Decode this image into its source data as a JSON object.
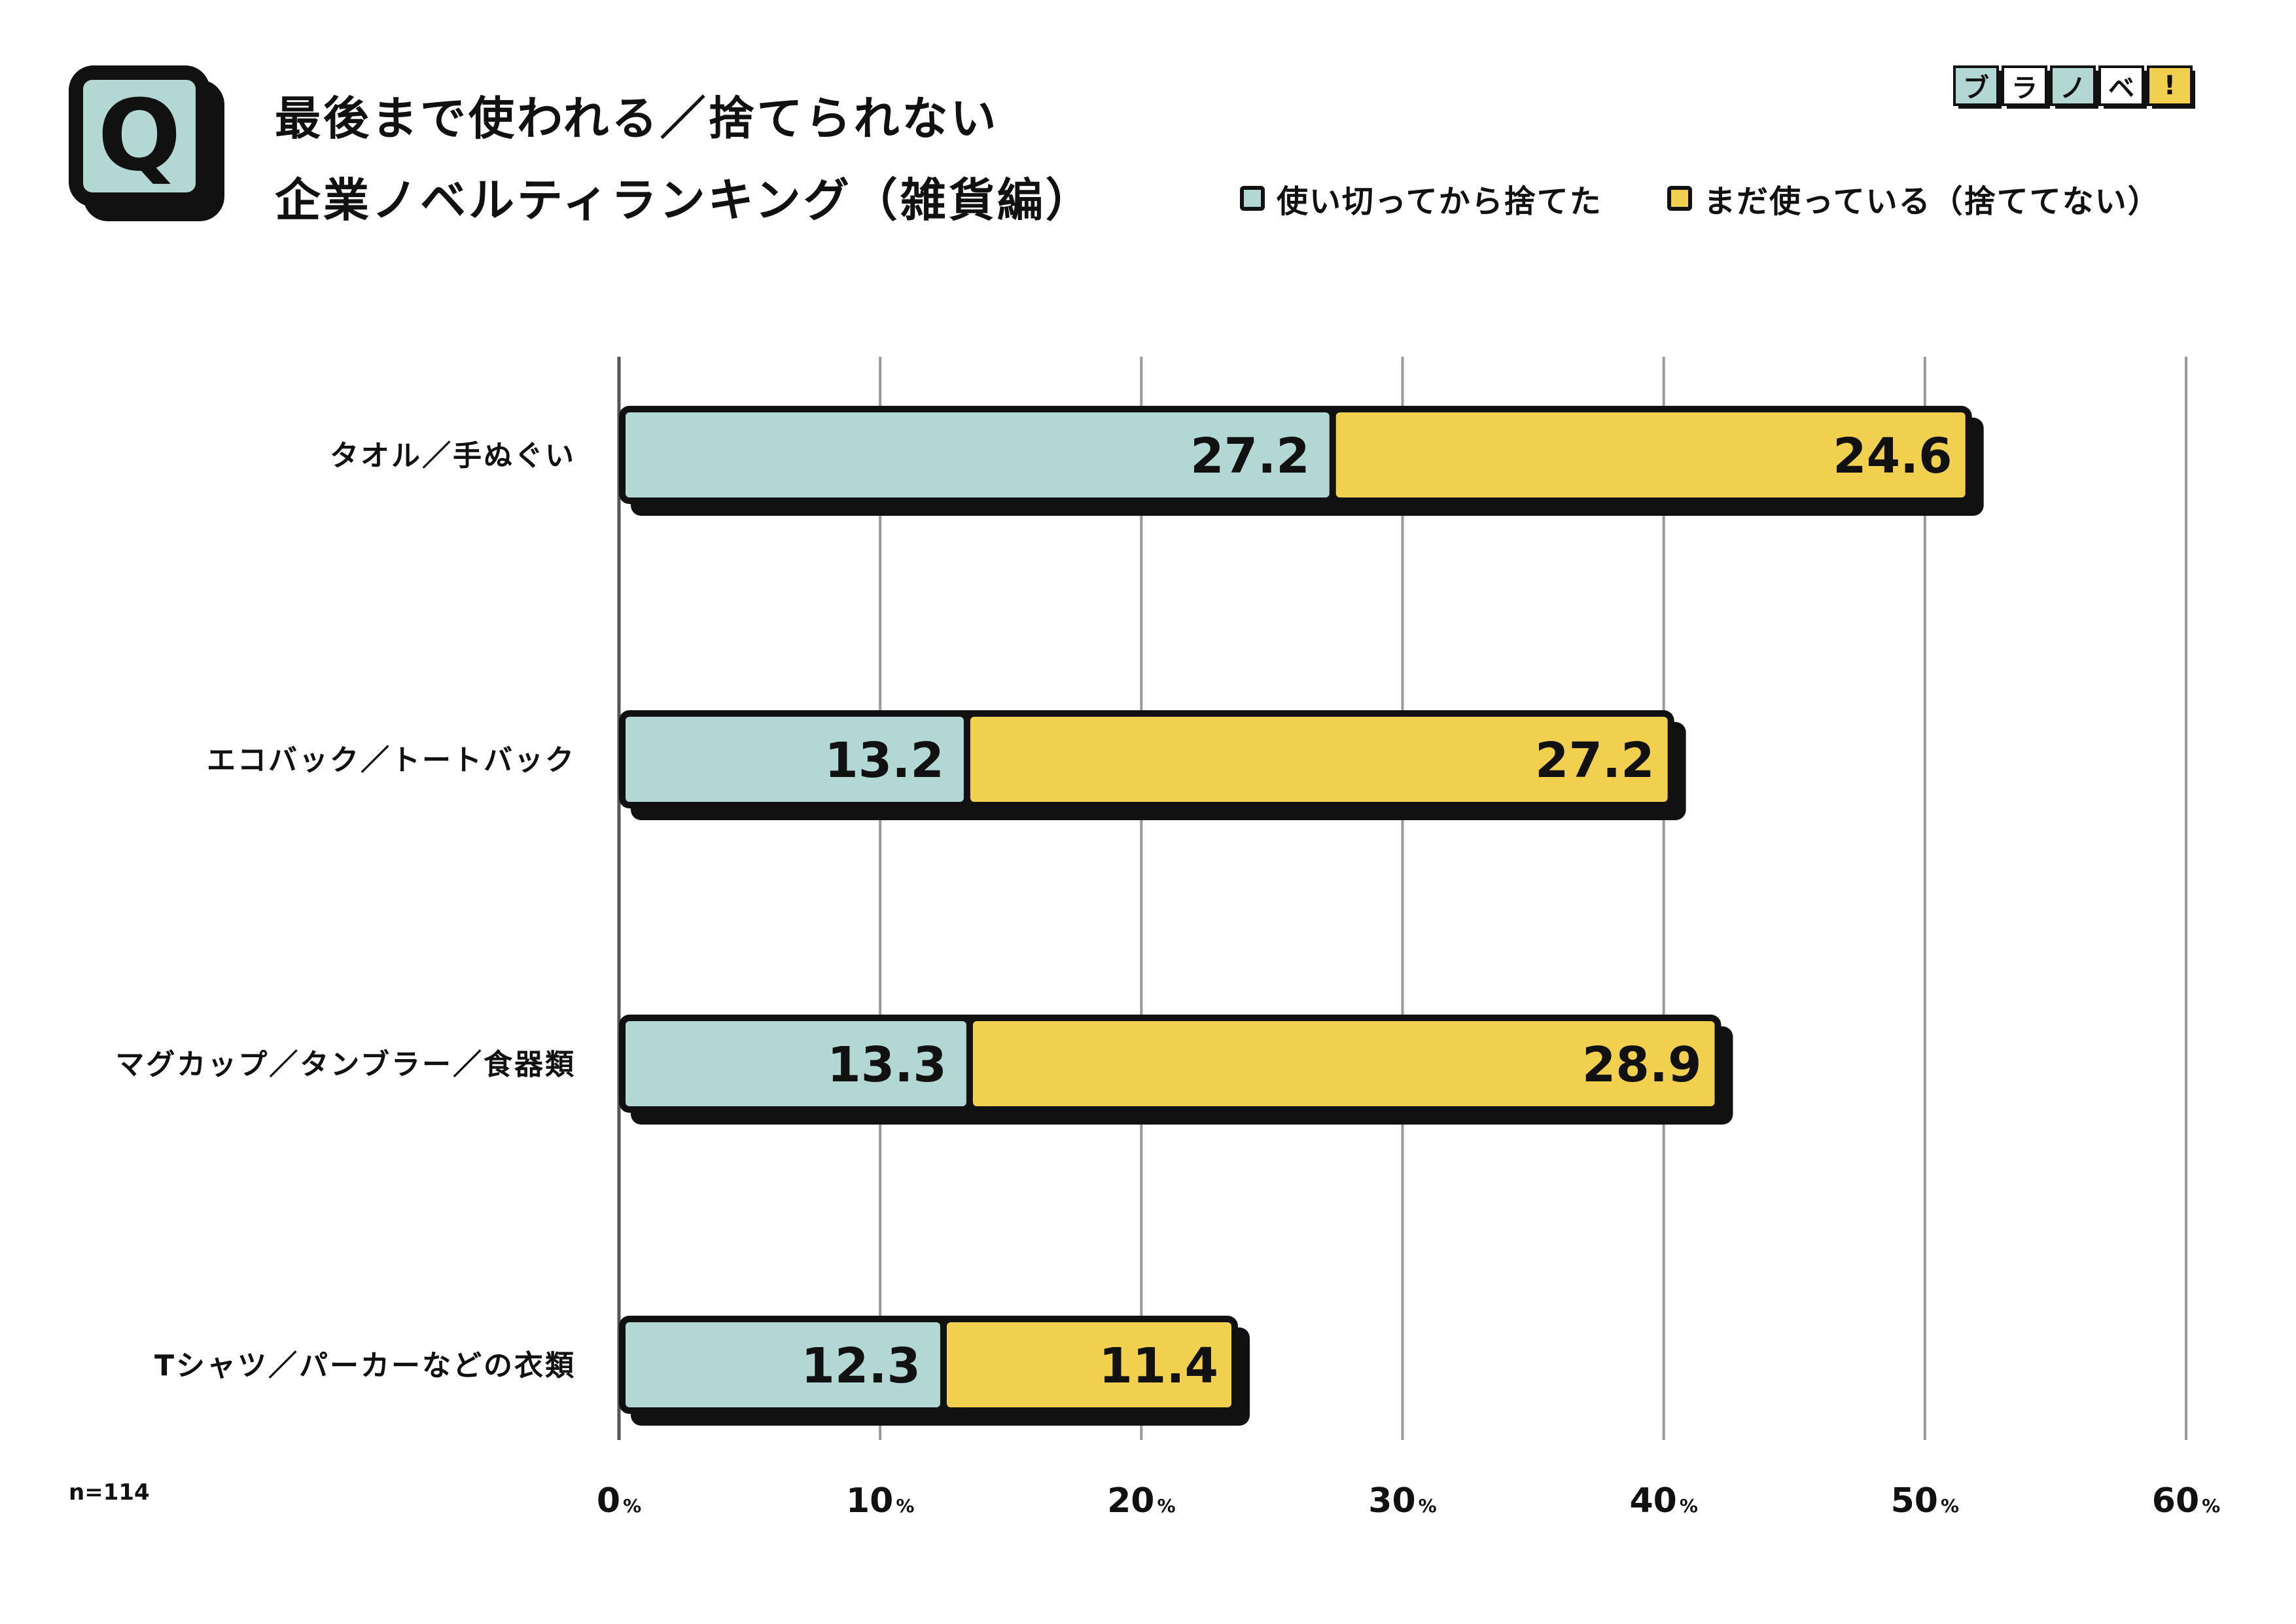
{
  "badge": {
    "letter": "Q"
  },
  "title": {
    "line1": "最後まで使われる／捨てられない",
    "line2": "企業ノベルティランキング（雑貨編）"
  },
  "logo": {
    "chars": [
      "ブ",
      "ラ",
      "ノ",
      "ベ",
      "!"
    ]
  },
  "legend": {
    "items": [
      {
        "label": "使い切ってから捨てた",
        "color": "#b3d8d4"
      },
      {
        "label": "まだ使っている（捨ててない）",
        "color": "#f2d04f"
      }
    ]
  },
  "sample": "n=114",
  "chart_data": {
    "type": "bar",
    "orientation": "horizontal",
    "stacked": true,
    "categories": [
      "タオル／手ぬぐい",
      "エコバック／トートバック",
      "マグカップ／タンブラー／食器類",
      "Tシャツ／パーカーなどの衣類"
    ],
    "series": [
      {
        "name": "使い切ってから捨てた",
        "color": "#b3d8d4",
        "values": [
          27.2,
          13.2,
          13.3,
          12.3
        ]
      },
      {
        "name": "まだ使っている（捨ててない）",
        "color": "#f2d04f",
        "values": [
          24.6,
          27.2,
          28.9,
          11.4
        ]
      }
    ],
    "xlim": [
      0,
      60
    ],
    "xticks": [
      0,
      10,
      20,
      30,
      40,
      50,
      60
    ],
    "tick_suffix": "%",
    "grid": true,
    "unit": "%"
  }
}
